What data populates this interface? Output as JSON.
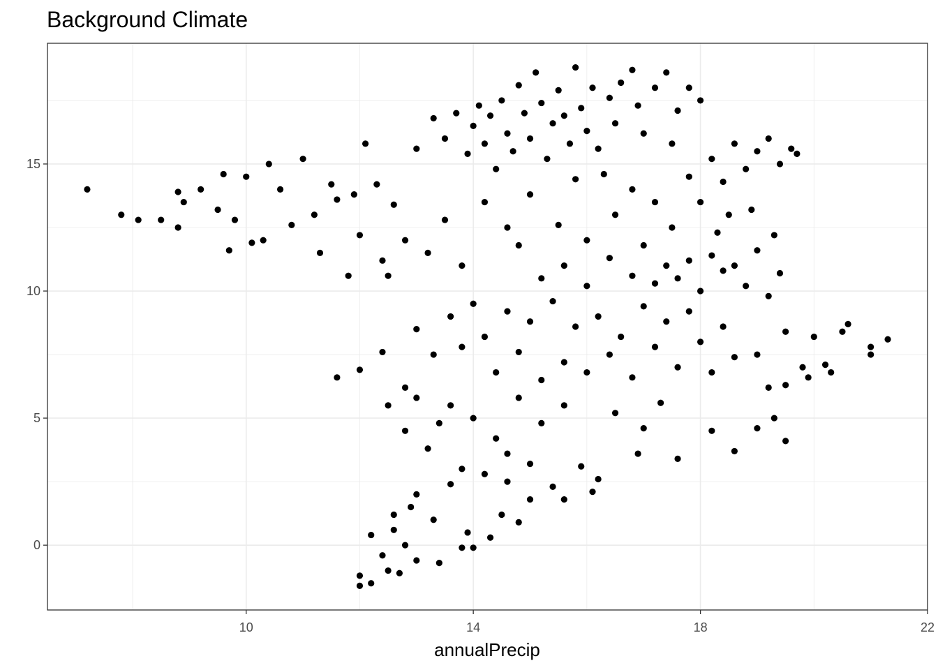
{
  "chart_data": {
    "type": "scatter",
    "title": "Background Climate",
    "x_label": "annualPrecip",
    "color": "#000000",
    "grid": true,
    "xlim": [
      6.5,
      22
    ],
    "ylim": [
      -2.55,
      19.75
    ],
    "xticks": [
      10,
      14,
      18,
      22
    ],
    "yticks": [
      0,
      5,
      10,
      15
    ],
    "minor_xticks": [
      8,
      12,
      16,
      20
    ],
    "minor_yticks": [
      2.5,
      7.5,
      12.5,
      17.5
    ],
    "x": [
      7.2,
      7.8,
      8.1,
      8.5,
      8.8,
      8.9,
      8.8,
      9.2,
      9.5,
      9.6,
      9.7,
      10.0,
      10.1,
      9.8,
      10.3,
      10.4,
      10.6,
      10.8,
      11.0,
      11.2,
      11.3,
      11.5,
      11.6,
      11.8,
      11.9,
      12.0,
      12.1,
      12.3,
      12.4,
      12.6,
      13.0,
      13.3,
      13.5,
      13.7,
      13.9,
      14.0,
      14.1,
      14.2,
      14.3,
      14.4,
      14.5,
      14.6,
      14.7,
      14.8,
      14.9,
      15.0,
      15.1,
      15.2,
      15.3,
      15.4,
      15.5,
      15.6,
      15.7,
      15.8,
      15.9,
      16.0,
      16.1,
      16.2,
      16.4,
      16.5,
      16.6,
      16.8,
      16.9,
      17.0,
      17.2,
      17.4,
      17.6,
      17.8,
      18.0,
      16.3,
      17.5,
      17.8,
      18.0,
      18.2,
      18.4,
      18.6,
      18.8,
      19.0,
      19.2,
      19.4,
      19.6,
      19.7,
      18.9,
      19.3,
      18.5,
      17.2,
      16.8,
      15.8,
      15.0,
      14.6,
      13.5,
      13.2,
      12.8,
      12.5,
      13.8,
      14.2,
      14.8,
      15.5,
      16.0,
      16.5,
      15.2,
      15.6,
      16.0,
      16.4,
      16.8,
      17.0,
      17.2,
      17.4,
      17.6,
      17.8,
      18.0,
      18.2,
      18.4,
      18.6,
      18.8,
      19.0,
      19.2,
      19.4,
      18.3,
      17.5,
      13.0,
      13.3,
      13.6,
      13.8,
      14.0,
      14.2,
      14.4,
      14.6,
      14.8,
      15.0,
      15.2,
      15.4,
      15.6,
      15.8,
      16.0,
      16.2,
      16.4,
      16.6,
      16.8,
      17.0,
      17.2,
      17.4,
      17.6,
      17.8,
      18.0,
      18.2,
      18.4,
      18.6,
      12.4,
      12.8,
      19.0,
      19.2,
      19.5,
      19.8,
      20.0,
      20.2,
      20.5,
      20.6,
      21.0,
      21.3,
      21.0,
      20.3,
      19.9,
      19.5,
      19.3,
      19.5,
      19.0,
      18.6,
      18.2,
      17.6,
      16.9,
      17.0,
      17.3,
      16.5,
      16.2,
      16.1,
      15.6,
      15.9,
      11.6,
      12.0,
      12.5,
      12.8,
      13.0,
      13.2,
      13.4,
      13.6,
      13.8,
      14.0,
      14.2,
      14.4,
      14.6,
      14.8,
      15.0,
      15.2,
      15.4,
      15.6,
      13.0,
      13.3,
      13.6,
      13.9,
      12.2,
      12.4,
      12.6,
      12.8,
      13.0,
      12.5,
      12.2,
      12.0,
      12.0,
      12.7,
      13.4,
      13.8,
      14.0,
      14.3,
      14.5,
      14.8,
      15.0,
      14.6,
      12.9,
      12.6
    ],
    "values": [
      14.0,
      13.0,
      12.8,
      12.8,
      13.9,
      13.5,
      12.5,
      14.0,
      13.2,
      14.6,
      11.6,
      14.5,
      11.9,
      12.8,
      12.0,
      15.0,
      14.0,
      12.6,
      15.2,
      13.0,
      11.5,
      14.2,
      13.6,
      10.6,
      13.8,
      12.2,
      15.8,
      14.2,
      11.2,
      13.4,
      15.6,
      16.8,
      16.0,
      17.0,
      15.4,
      16.5,
      17.3,
      15.8,
      16.9,
      14.8,
      17.5,
      16.2,
      15.5,
      18.1,
      17.0,
      16.0,
      18.6,
      17.4,
      15.2,
      16.6,
      17.9,
      16.9,
      15.8,
      18.8,
      17.2,
      16.3,
      18.0,
      15.6,
      17.6,
      16.6,
      18.2,
      18.7,
      17.3,
      16.2,
      18.0,
      18.6,
      17.1,
      18.0,
      17.5,
      14.6,
      15.8,
      14.5,
      13.5,
      15.2,
      14.3,
      15.8,
      14.8,
      15.5,
      16.0,
      15.0,
      15.6,
      15.4,
      13.2,
      12.2,
      13.0,
      13.5,
      14.0,
      14.4,
      13.8,
      12.5,
      12.8,
      11.5,
      12.0,
      10.6,
      11.0,
      13.5,
      11.8,
      12.6,
      12.0,
      13.0,
      10.5,
      11.0,
      10.2,
      11.3,
      10.6,
      11.8,
      10.3,
      11.0,
      10.5,
      11.2,
      10.0,
      11.4,
      10.8,
      11.0,
      10.2,
      11.6,
      9.8,
      10.7,
      12.3,
      12.5,
      8.5,
      7.5,
      9.0,
      7.8,
      9.5,
      8.2,
      6.8,
      9.2,
      7.6,
      8.8,
      6.5,
      9.6,
      7.2,
      8.6,
      6.8,
      9.0,
      7.5,
      8.2,
      6.6,
      9.4,
      7.8,
      8.8,
      7.0,
      9.2,
      8.0,
      6.8,
      8.6,
      7.4,
      7.6,
      6.2,
      7.5,
      6.2,
      8.4,
      7.0,
      8.2,
      7.1,
      8.4,
      8.7,
      7.5,
      8.1,
      7.8,
      6.8,
      6.6,
      6.3,
      5.0,
      4.1,
      4.6,
      3.7,
      4.5,
      3.4,
      3.6,
      4.6,
      5.6,
      5.2,
      2.6,
      2.1,
      1.8,
      3.1,
      6.6,
      6.9,
      5.5,
      4.5,
      5.8,
      3.8,
      4.8,
      5.5,
      3.0,
      5.0,
      2.8,
      4.2,
      3.6,
      5.8,
      3.2,
      4.8,
      2.3,
      5.5,
      2.0,
      1.0,
      2.4,
      0.5,
      0.4,
      -0.4,
      1.2,
      0.0,
      -0.6,
      -1.0,
      -1.5,
      -1.6,
      -1.2,
      -1.1,
      -0.7,
      -0.1,
      -0.1,
      0.3,
      1.2,
      0.9,
      1.8,
      2.5,
      1.5,
      0.6
    ]
  }
}
